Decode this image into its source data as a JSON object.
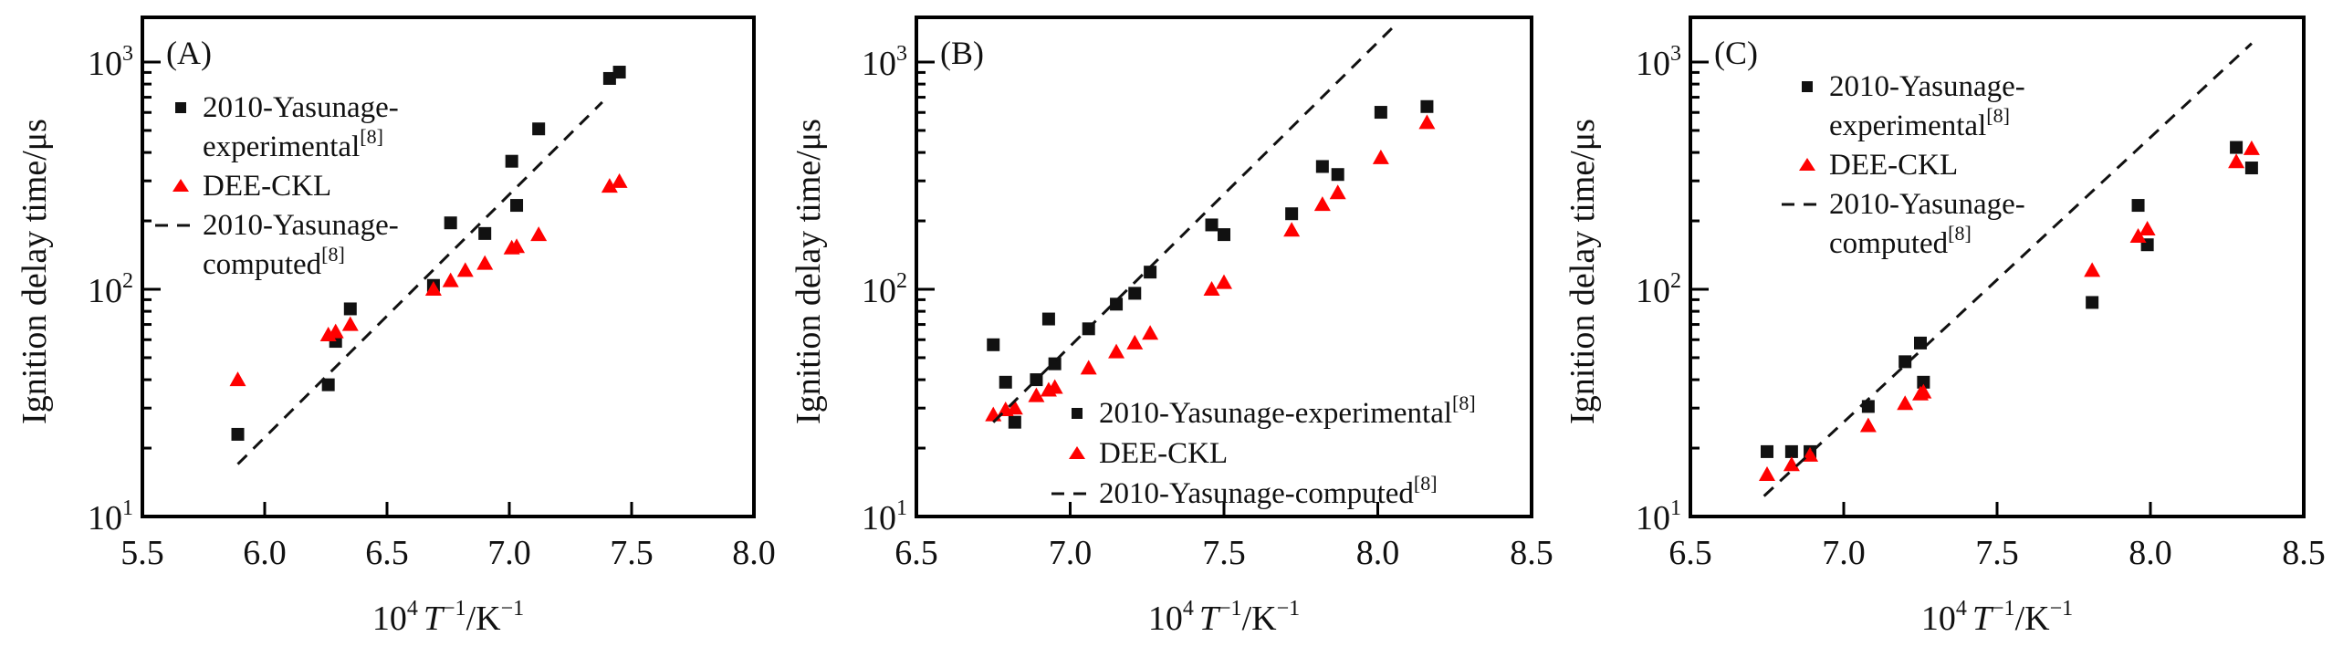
{
  "figure": {
    "panels": [
      "A",
      "B",
      "C"
    ]
  },
  "chart_data": [
    {
      "type": "scatter",
      "panel_label": "(A)",
      "xlabel": {
        "base": "10",
        "exp": "4",
        "T": "T",
        "texp": "−1",
        "unit": "/K",
        "uexp": "−1"
      },
      "ylabel": "Ignition delay time/μs",
      "xlim": [
        5.5,
        8.0
      ],
      "xticks": [
        5.5,
        6.0,
        6.5,
        7.0,
        7.5,
        8.0
      ],
      "xtick_labels": [
        "5.5",
        "6.0",
        "6.5",
        "7.0",
        "7.5",
        "8.0"
      ],
      "yscale": "log",
      "ylim": [
        10,
        1574
      ],
      "yticks": [
        10,
        100,
        1000
      ],
      "ytick_labels": [
        {
          "base": "10",
          "exp": "1"
        },
        {
          "base": "10",
          "exp": "2"
        },
        {
          "base": "10",
          "exp": "3"
        }
      ],
      "legend": {
        "placement": "top-left",
        "entries": [
          {
            "lines": [
              "2010-Yasunage-",
              "experimental"
            ],
            "ref": "[8]",
            "marker": "square"
          },
          {
            "lines": [
              "DEE-CKL"
            ],
            "ref": "",
            "marker": "triangle"
          },
          {
            "lines": [
              "2010-Yasunage-",
              "computed"
            ],
            "ref": "[8]",
            "marker": "dash"
          }
        ]
      },
      "series": [
        {
          "name": "2010-Yasunage-experimental[8]",
          "marker": "square",
          "color": "#111111",
          "x": [
            5.89,
            6.26,
            6.29,
            6.35,
            6.69,
            6.76,
            6.9,
            7.01,
            7.03,
            7.12,
            7.41,
            7.45
          ],
          "y": [
            23,
            38,
            59,
            82,
            104,
            196,
            176,
            366,
            234,
            508,
            847,
            903
          ]
        },
        {
          "name": "DEE-CKL",
          "marker": "triangle",
          "color": "#ff0000",
          "x": [
            5.89,
            6.26,
            6.29,
            6.35,
            6.69,
            6.76,
            6.82,
            6.9,
            7.01,
            7.03,
            7.12,
            7.41,
            7.45
          ],
          "y": [
            40,
            63,
            65,
            70,
            100,
            109,
            121,
            130,
            152,
            154,
            174,
            284,
            298
          ]
        },
        {
          "name": "2010-Yasunage-computed[8]",
          "marker": "dashed-line",
          "color": "#111111",
          "x": [
            5.89,
            7.38
          ],
          "y": [
            17,
            666
          ]
        }
      ]
    },
    {
      "type": "scatter",
      "panel_label": "(B)",
      "xlabel": {
        "base": "10",
        "exp": "4",
        "T": "T",
        "texp": "−1",
        "unit": "/K",
        "uexp": "−1"
      },
      "ylabel": "Ignition delay time/μs",
      "xlim": [
        6.5,
        8.5
      ],
      "xticks": [
        6.5,
        7.0,
        7.5,
        8.0,
        8.5
      ],
      "xtick_labels": [
        "6.5",
        "7.0",
        "7.5",
        "8.0",
        "8.5"
      ],
      "yscale": "log",
      "ylim": [
        10,
        1574
      ],
      "yticks": [
        10,
        100,
        1000
      ],
      "ytick_labels": [
        {
          "base": "10",
          "exp": "1"
        },
        {
          "base": "10",
          "exp": "2"
        },
        {
          "base": "10",
          "exp": "3"
        }
      ],
      "legend": {
        "placement": "bottom-right",
        "entries": [
          {
            "lines": [
              "2010-Yasunage-experimental"
            ],
            "ref": "[8]",
            "marker": "square"
          },
          {
            "lines": [
              "DEE-CKL"
            ],
            "ref": "",
            "marker": "triangle"
          },
          {
            "lines": [
              "2010-Yasunage-computed"
            ],
            "ref": "[8]",
            "marker": "dash"
          }
        ]
      },
      "series": [
        {
          "name": "2010-Yasunage-experimental[8]",
          "marker": "square",
          "color": "#111111",
          "x": [
            6.75,
            6.79,
            6.82,
            6.89,
            6.93,
            6.95,
            7.06,
            7.15,
            7.21,
            7.26,
            7.46,
            7.5,
            7.72,
            7.82,
            7.87,
            8.01,
            8.16
          ],
          "y": [
            57,
            39,
            26,
            40,
            74,
            47,
            67,
            86,
            96,
            119,
            192,
            174,
            215,
            347,
            320,
            601,
            637
          ]
        },
        {
          "name": "DEE-CKL",
          "marker": "triangle",
          "color": "#ff0000",
          "x": [
            6.75,
            6.79,
            6.82,
            6.89,
            6.93,
            6.95,
            7.06,
            7.15,
            7.21,
            7.26,
            7.46,
            7.5,
            7.72,
            7.82,
            7.87,
            8.01,
            8.16
          ],
          "y": [
            28,
            29.5,
            30,
            34,
            36,
            37,
            45,
            53,
            58,
            64,
            100,
            107,
            182,
            236,
            266,
            379,
            541
          ]
        },
        {
          "name": "2010-Yasunage-computed[8]",
          "marker": "dashed-line",
          "color": "#111111",
          "x": [
            6.75,
            8.05
          ],
          "y": [
            26,
            1426
          ]
        }
      ]
    },
    {
      "type": "scatter",
      "panel_label": "(C)",
      "xlabel": {
        "base": "10",
        "exp": "4",
        "T": "T",
        "texp": "−1",
        "unit": "/K",
        "uexp": "−1"
      },
      "ylabel": "Ignition delay time/μs",
      "xlim": [
        6.5,
        8.5
      ],
      "xticks": [
        6.5,
        7.0,
        7.5,
        8.0,
        8.5
      ],
      "xtick_labels": [
        "6.5",
        "7.0",
        "7.5",
        "8.0",
        "8.5"
      ],
      "yscale": "log",
      "ylim": [
        10,
        1574
      ],
      "yticks": [
        10,
        100,
        1000
      ],
      "ytick_labels": [
        {
          "base": "10",
          "exp": "1"
        },
        {
          "base": "10",
          "exp": "2"
        },
        {
          "base": "10",
          "exp": "3"
        }
      ],
      "legend": {
        "placement": "top-left",
        "entries": [
          {
            "lines": [
              "2010-Yasunage-",
              "experimental"
            ],
            "ref": "[8]",
            "marker": "square"
          },
          {
            "lines": [
              "DEE-CKL"
            ],
            "ref": "",
            "marker": "triangle"
          },
          {
            "lines": [
              "2010-Yasunage-",
              "computed"
            ],
            "ref": "[8]",
            "marker": "dash"
          }
        ]
      },
      "series": [
        {
          "name": "2010-Yasunage-experimental[8]",
          "marker": "square",
          "color": "#111111",
          "x": [
            6.75,
            6.83,
            6.89,
            7.08,
            7.2,
            7.25,
            7.26,
            7.81,
            7.96,
            7.99,
            8.28,
            8.33
          ],
          "y": [
            19.3,
            19.3,
            19.3,
            30.5,
            48,
            58,
            39,
            87.5,
            234,
            157,
            421,
            342
          ]
        },
        {
          "name": "DEE-CKL",
          "marker": "triangle",
          "color": "#ff0000",
          "x": [
            6.75,
            6.83,
            6.89,
            7.08,
            7.2,
            7.25,
            7.26,
            7.81,
            7.96,
            7.99,
            8.28,
            8.33
          ],
          "y": [
            15.3,
            16.9,
            18.6,
            25.1,
            31.4,
            34.6,
            35.3,
            121,
            171,
            184,
            364,
            416
          ]
        },
        {
          "name": "2010-Yasunage-computed[8]",
          "marker": "dashed-line",
          "color": "#111111",
          "x": [
            6.74,
            8.33
          ],
          "y": [
            12.3,
            1207
          ]
        }
      ]
    }
  ]
}
